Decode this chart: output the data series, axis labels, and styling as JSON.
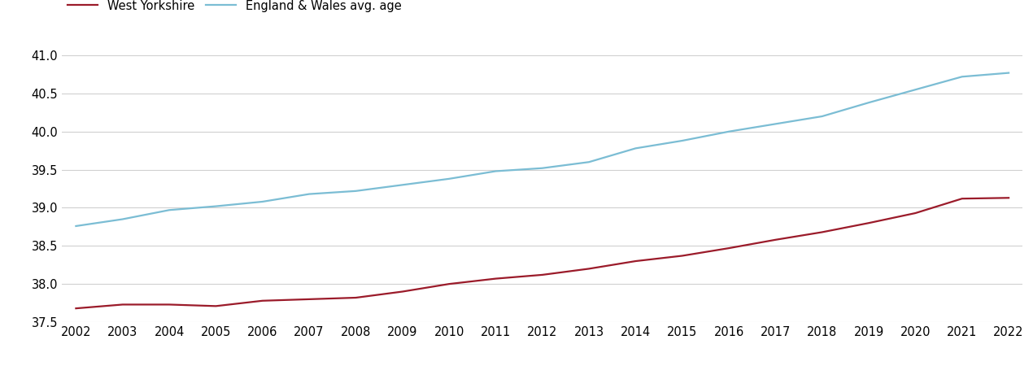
{
  "years": [
    2002,
    2003,
    2004,
    2005,
    2006,
    2007,
    2008,
    2009,
    2010,
    2011,
    2012,
    2013,
    2014,
    2015,
    2016,
    2017,
    2018,
    2019,
    2020,
    2021,
    2022
  ],
  "west_yorkshire": [
    37.68,
    37.73,
    37.73,
    37.71,
    37.78,
    37.8,
    37.82,
    37.9,
    38.0,
    38.07,
    38.12,
    38.2,
    38.3,
    38.37,
    38.47,
    38.58,
    38.68,
    38.8,
    38.93,
    39.12,
    39.13
  ],
  "england_wales": [
    38.76,
    38.85,
    38.97,
    39.02,
    39.08,
    39.18,
    39.22,
    39.3,
    39.38,
    39.48,
    39.52,
    39.6,
    39.78,
    39.88,
    40.0,
    40.1,
    40.2,
    40.38,
    40.55,
    40.72,
    40.77
  ],
  "wy_color": "#9B1B2A",
  "ew_color": "#7BBDD4",
  "wy_label": "West Yorkshire",
  "ew_label": "England & Wales avg. age",
  "ylim": [
    37.5,
    41.15
  ],
  "yticks": [
    37.5,
    38.0,
    38.5,
    39.0,
    39.5,
    40.0,
    40.5,
    41.0
  ],
  "background_color": "#FFFFFF",
  "grid_color": "#D0D0D0",
  "line_width": 1.6,
  "font_size": 10.5
}
